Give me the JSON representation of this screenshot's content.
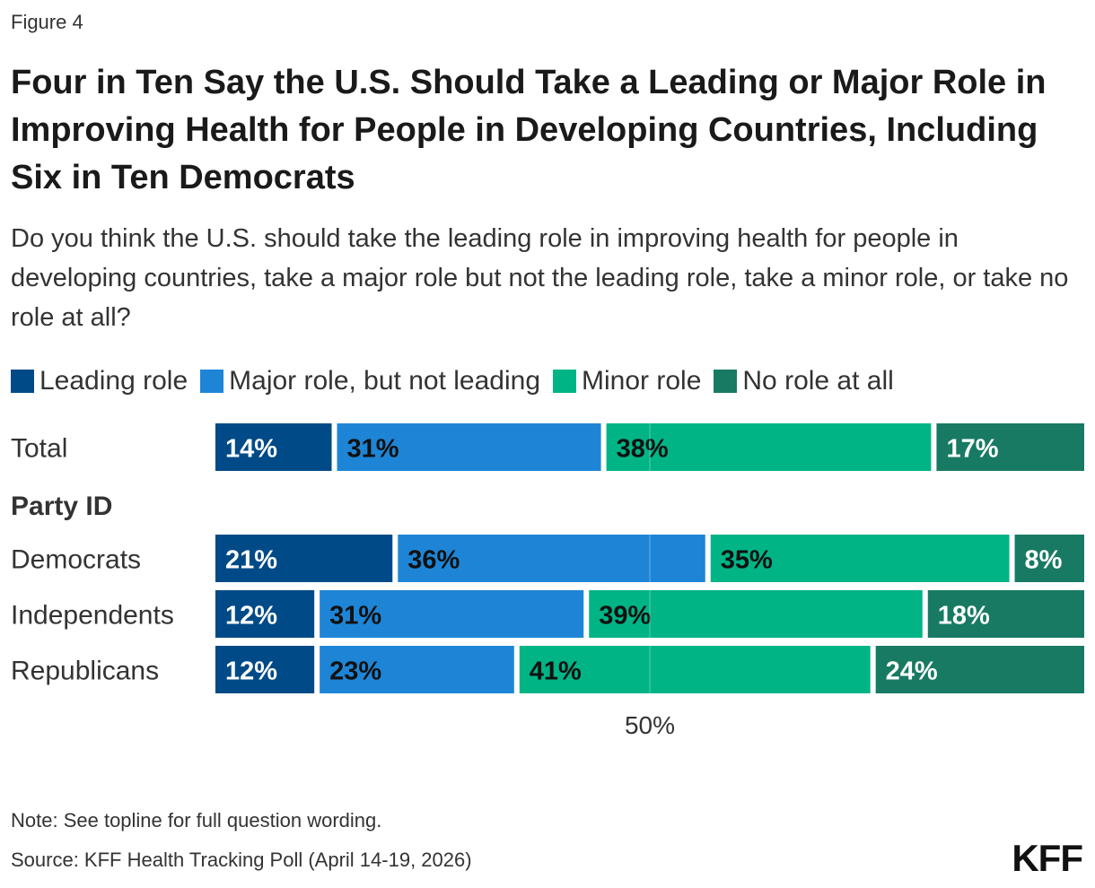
{
  "header": {
    "figure_label": "Figure 4",
    "title": "Four in Ten Say the U.S. Should Take a Leading or Major Role in Improving Health for People in Developing Countries, Including Six in Ten Democrats",
    "subtitle": "Do you think the U.S. should take the leading role in improving health for people in developing countries, take a major role but not the leading role, take a minor role, or take no role at all?"
  },
  "legend": [
    {
      "label": "Leading role",
      "color": "#004a87"
    },
    {
      "label": "Major role, but not leading",
      "color": "#1e85d6"
    },
    {
      "label": "Minor role",
      "color": "#00b485"
    },
    {
      "label": "No role at all",
      "color": "#187a63"
    }
  ],
  "chart_data": {
    "type": "bar",
    "orientation": "horizontal",
    "stacked": true,
    "categories": [
      "Total",
      "Democrats",
      "Independents",
      "Republicans"
    ],
    "group_label": "Party ID",
    "series": [
      {
        "name": "Leading role",
        "values": [
          14,
          21,
          12,
          12
        ],
        "labels": [
          "14%",
          "21%",
          "12%",
          "12%"
        ],
        "color": "#004a87",
        "label_color": "#ffffff"
      },
      {
        "name": "Major role, but not leading",
        "values": [
          31,
          36,
          31,
          23
        ],
        "labels": [
          "31%",
          "36%",
          "31%",
          "23%"
        ],
        "color": "#1e85d6",
        "label_color": "#111111"
      },
      {
        "name": "Minor role",
        "values": [
          38,
          35,
          39,
          41
        ],
        "labels": [
          "38%",
          "35%",
          "39%",
          "41%"
        ],
        "color": "#00b485",
        "label_color": "#111111"
      },
      {
        "name": "No role at all",
        "values": [
          17,
          8,
          18,
          24
        ],
        "labels": [
          "17%",
          "8%",
          "18%",
          "24%"
        ],
        "color": "#187a63",
        "label_color": "#ffffff"
      }
    ],
    "xlim": [
      0,
      100
    ],
    "reference_line": {
      "value": 50,
      "label": "50%"
    }
  },
  "footer": {
    "note": "Note: See topline for full question wording.",
    "source": "Source: KFF Health Tracking Poll (April 14-19, 2026)",
    "logo_text": "KFF"
  }
}
